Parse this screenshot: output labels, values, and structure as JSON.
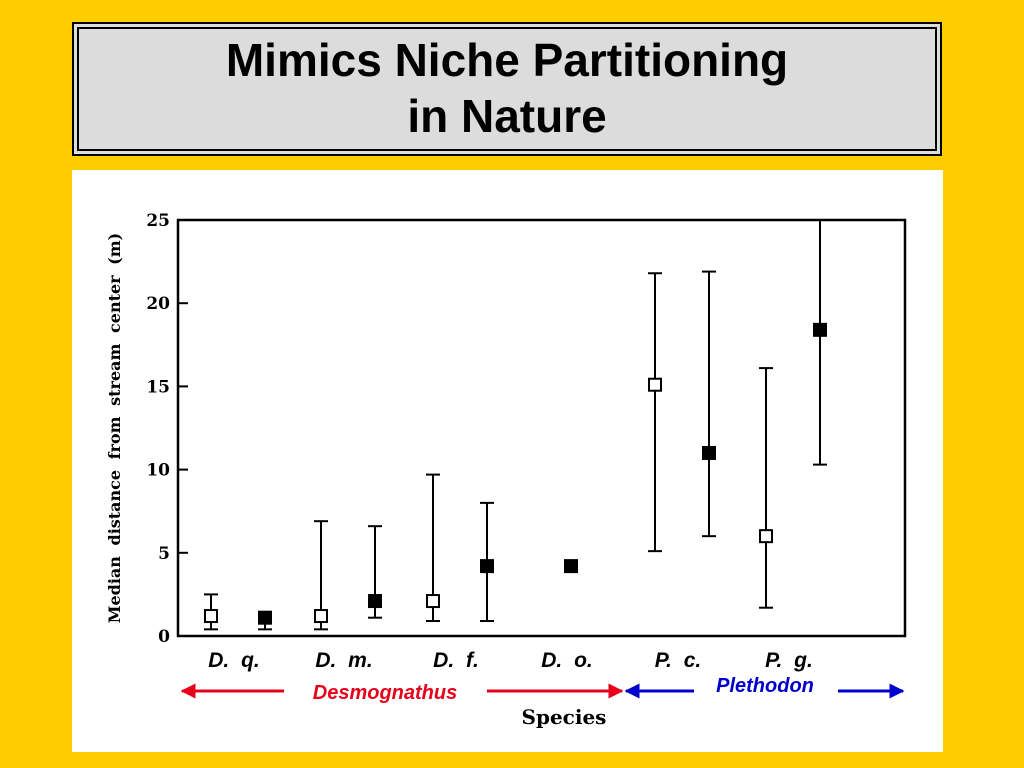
{
  "title": {
    "line1": "Mimics Niche Partitioning",
    "line2": "in Nature"
  },
  "colors": {
    "background": "#FFCC00",
    "title_box": "#DCDCDC",
    "desmognathus": "#E8001A",
    "plethodon": "#0000CC"
  },
  "chart_data": {
    "type": "scatter",
    "ylabel": "Median distance from stream center (m)",
    "xlabel": "Species",
    "ylim": [
      0,
      25
    ],
    "yticks": [
      "0",
      "5",
      "10",
      "15",
      "20",
      "25"
    ],
    "categories": [
      "D. q.",
      "D. m.",
      "D. f.",
      "D. o.",
      "P. c.",
      "P. g."
    ],
    "points": [
      {
        "category": "D. q.",
        "marker": "open",
        "median": 1.2,
        "low": 0.4,
        "high": 2.5
      },
      {
        "category": "D. q.",
        "marker": "filled",
        "median": 1.1,
        "low": 0.4,
        "high": 1.1
      },
      {
        "category": "D. m.",
        "marker": "open",
        "median": 1.2,
        "low": 0.4,
        "high": 6.9
      },
      {
        "category": "D. m.",
        "marker": "filled",
        "median": 2.1,
        "low": 1.1,
        "high": 6.6
      },
      {
        "category": "D. f.",
        "marker": "open",
        "median": 2.1,
        "low": 0.9,
        "high": 9.7
      },
      {
        "category": "D. f.",
        "marker": "filled",
        "median": 4.2,
        "low": 0.9,
        "high": 8.0
      },
      {
        "category": "D. o.",
        "marker": "filled",
        "median": 4.2,
        "low": 4.2,
        "high": 4.2
      },
      {
        "category": "P. c.",
        "marker": "open",
        "median": 15.1,
        "low": 5.1,
        "high": 21.8
      },
      {
        "category": "P. c.",
        "marker": "filled",
        "median": 11.0,
        "low": 6.0,
        "high": 21.9
      },
      {
        "category": "P. g.",
        "marker": "open",
        "median": 6.0,
        "low": 1.7,
        "high": 16.1
      },
      {
        "category": "P. g.",
        "marker": "filled",
        "median": 18.4,
        "low": 10.3,
        "high": 25.0
      }
    ],
    "genera": [
      {
        "name": "Desmognathus",
        "color": "#E8001A"
      },
      {
        "name": "Plethodon",
        "color": "#0000CC"
      }
    ]
  }
}
